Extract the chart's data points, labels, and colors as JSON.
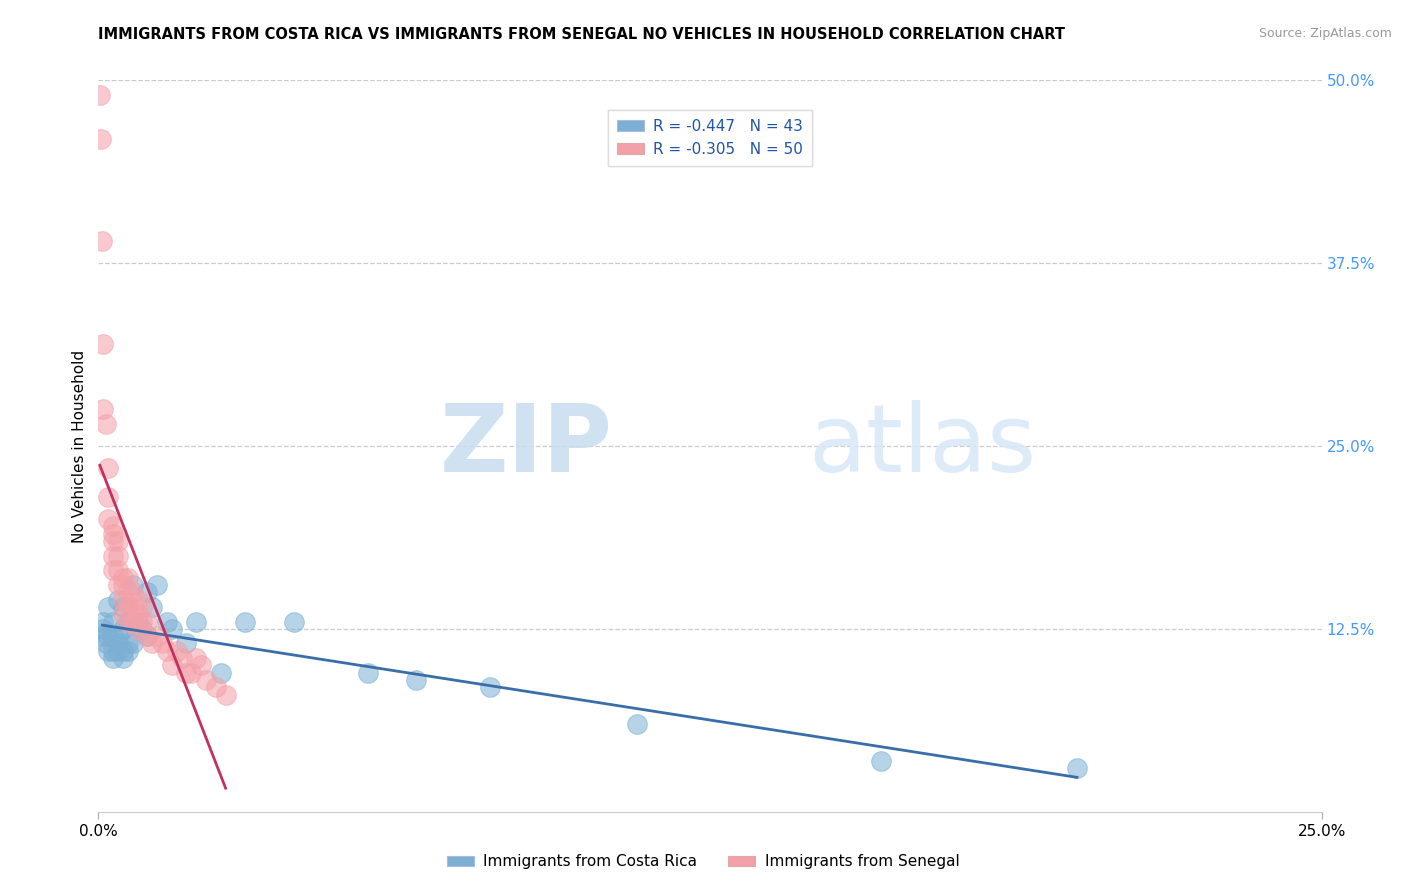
{
  "title": "IMMIGRANTS FROM COSTA RICA VS IMMIGRANTS FROM SENEGAL NO VEHICLES IN HOUSEHOLD CORRELATION CHART",
  "source": "Source: ZipAtlas.com",
  "ylabel": "No Vehicles in Household",
  "legend_1_label": "R = -0.447   N = 43",
  "legend_2_label": "R = -0.305   N = 50",
  "legend_bottom_1": "Immigrants from Costa Rica",
  "legend_bottom_2": "Immigrants from Senegal",
  "blue_color": "#7BAFD4",
  "pink_color": "#F4A0A8",
  "blue_line_color": "#3A6EA8",
  "pink_line_color": "#C43060",
  "watermark_zip": "ZIP",
  "watermark_atlas": "atlas",
  "xlim": [
    0.0,
    0.25
  ],
  "ylim": [
    0.0,
    0.5
  ],
  "costa_rica_x": [
    0.0008,
    0.001,
    0.001,
    0.0015,
    0.002,
    0.002,
    0.002,
    0.003,
    0.003,
    0.003,
    0.003,
    0.004,
    0.004,
    0.004,
    0.004,
    0.005,
    0.005,
    0.005,
    0.005,
    0.006,
    0.006,
    0.006,
    0.007,
    0.007,
    0.008,
    0.009,
    0.01,
    0.01,
    0.011,
    0.012,
    0.014,
    0.015,
    0.018,
    0.02,
    0.025,
    0.03,
    0.04,
    0.055,
    0.065,
    0.08,
    0.11,
    0.16,
    0.2
  ],
  "costa_rica_y": [
    0.12,
    0.125,
    0.13,
    0.115,
    0.11,
    0.12,
    0.14,
    0.105,
    0.11,
    0.12,
    0.13,
    0.11,
    0.115,
    0.12,
    0.145,
    0.105,
    0.11,
    0.125,
    0.14,
    0.11,
    0.115,
    0.13,
    0.115,
    0.155,
    0.13,
    0.125,
    0.12,
    0.15,
    0.14,
    0.155,
    0.13,
    0.125,
    0.115,
    0.13,
    0.095,
    0.13,
    0.13,
    0.095,
    0.09,
    0.085,
    0.06,
    0.035,
    0.03
  ],
  "senegal_x": [
    0.0003,
    0.0005,
    0.0008,
    0.001,
    0.001,
    0.0015,
    0.002,
    0.002,
    0.002,
    0.003,
    0.003,
    0.003,
    0.003,
    0.003,
    0.004,
    0.004,
    0.004,
    0.004,
    0.005,
    0.005,
    0.005,
    0.005,
    0.006,
    0.006,
    0.006,
    0.006,
    0.007,
    0.007,
    0.007,
    0.008,
    0.008,
    0.008,
    0.009,
    0.009,
    0.01,
    0.01,
    0.011,
    0.012,
    0.013,
    0.014,
    0.015,
    0.016,
    0.017,
    0.018,
    0.019,
    0.02,
    0.021,
    0.022,
    0.024,
    0.026
  ],
  "senegal_y": [
    0.49,
    0.46,
    0.39,
    0.32,
    0.275,
    0.265,
    0.235,
    0.215,
    0.2,
    0.195,
    0.19,
    0.185,
    0.175,
    0.165,
    0.185,
    0.175,
    0.165,
    0.155,
    0.16,
    0.155,
    0.145,
    0.135,
    0.16,
    0.15,
    0.14,
    0.13,
    0.15,
    0.14,
    0.13,
    0.145,
    0.135,
    0.125,
    0.14,
    0.13,
    0.13,
    0.12,
    0.115,
    0.12,
    0.115,
    0.11,
    0.1,
    0.11,
    0.105,
    0.095,
    0.095,
    0.105,
    0.1,
    0.09,
    0.085,
    0.08
  ]
}
